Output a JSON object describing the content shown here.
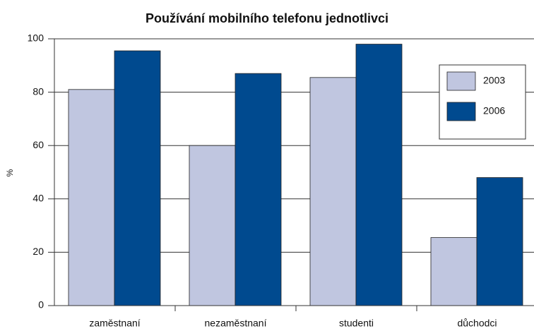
{
  "chart_data": {
    "type": "bar",
    "title": "Používání mobilního telefonu jednotlivci",
    "ylabel": "%",
    "categories": [
      "zaměstnaní",
      "nezaměstnaní",
      "studenti",
      "důchodci"
    ],
    "series": [
      {
        "name": "2003",
        "color": "#c0c6e0",
        "values": [
          81,
          60,
          85.5,
          25.5
        ]
      },
      {
        "name": "2006",
        "color": "#004a8f",
        "values": [
          95.5,
          87,
          98,
          48
        ]
      }
    ],
    "ylim": [
      0,
      100
    ],
    "yticks": [
      0,
      20,
      40,
      60,
      80,
      100
    ],
    "grid": true,
    "legend": "upper right"
  }
}
